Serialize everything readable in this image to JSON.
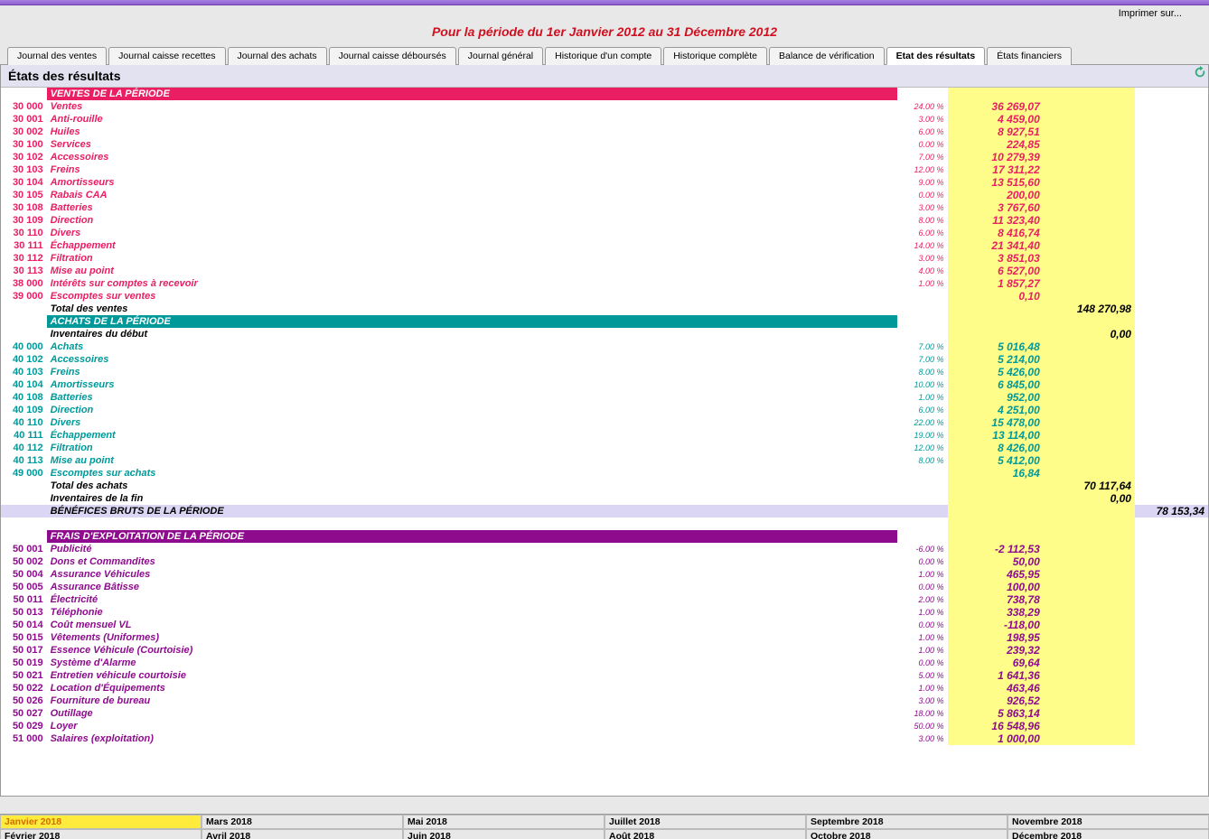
{
  "print_label": "Imprimer sur...",
  "period_title": "Pour la période du 1er Janvier 2012 au 31 Décembre 2012",
  "tabs": [
    "Journal des ventes",
    "Journal caisse recettes",
    "Journal des achats",
    "Journal caisse déboursés",
    "Journal général",
    "Historique d'un compte",
    "Historique complète",
    "Balance de vérification",
    "Etat des résultats",
    "États financiers"
  ],
  "active_tab_index": 8,
  "panel_title": "États des résultats",
  "section_ventes_title": "VENTES DE LA PÉRIODE",
  "section_achats_title": "ACHATS DE LA PÉRIODE",
  "section_frais_title": "FRAIS D'EXPLOITATION DE LA PÉRIODE",
  "inventaires_debut": "Inventaires du début",
  "inventaires_debut_val": "0,00",
  "total_ventes_label": "Total des ventes",
  "total_ventes_val": "148 270,98",
  "total_achats_label": "Total des achats",
  "total_achats_val": "70 117,64",
  "inventaires_fin_label": "Inventaires de la fin",
  "inventaires_fin_val": "0,00",
  "benefices_label": "BÉNÉFICES BRUTS DE LA PÉRIODE",
  "benefices_val": "78 153,34",
  "ventes": [
    {
      "code": "30 000",
      "label": "Ventes",
      "pct": "24.00 %",
      "amount": "36 269,07"
    },
    {
      "code": "30 001",
      "label": "Anti-rouille",
      "pct": "3.00 %",
      "amount": "4 459,00"
    },
    {
      "code": "30 002",
      "label": "Huiles",
      "pct": "6.00 %",
      "amount": "8 927,51"
    },
    {
      "code": "30 100",
      "label": "Services",
      "pct": "0.00 %",
      "amount": "224,85"
    },
    {
      "code": "30 102",
      "label": "Accessoires",
      "pct": "7.00 %",
      "amount": "10 279,39"
    },
    {
      "code": "30 103",
      "label": "Freins",
      "pct": "12.00 %",
      "amount": "17 311,22"
    },
    {
      "code": "30 104",
      "label": "Amortisseurs",
      "pct": "9.00 %",
      "amount": "13 515,60"
    },
    {
      "code": "30 105",
      "label": "Rabais CAA",
      "pct": "0.00 %",
      "amount": "200,00"
    },
    {
      "code": "30 108",
      "label": "Batteries",
      "pct": "3.00 %",
      "amount": "3 767,60"
    },
    {
      "code": "30 109",
      "label": "Direction",
      "pct": "8.00 %",
      "amount": "11 323,40"
    },
    {
      "code": "30 110",
      "label": "Divers",
      "pct": "6.00 %",
      "amount": "8 416,74"
    },
    {
      "code": "30 111",
      "label": "Échappement",
      "pct": "14.00 %",
      "amount": "21 341,40"
    },
    {
      "code": "30 112",
      "label": "Filtration",
      "pct": "3.00 %",
      "amount": "3 851,03"
    },
    {
      "code": "30 113",
      "label": "Mise au point",
      "pct": "4.00 %",
      "amount": "6 527,00"
    },
    {
      "code": "38 000",
      "label": "Intérêts sur comptes à recevoir",
      "pct": "1.00 %",
      "amount": "1 857,27"
    },
    {
      "code": "39 000",
      "label": "Escomptes sur ventes",
      "pct": "",
      "amount": "0,10"
    }
  ],
  "achats": [
    {
      "code": "40 000",
      "label": "Achats",
      "pct": "7.00 %",
      "amount": "5 016,48"
    },
    {
      "code": "40 102",
      "label": "Accessoires",
      "pct": "7.00 %",
      "amount": "5 214,00"
    },
    {
      "code": "40 103",
      "label": "Freins",
      "pct": "8.00 %",
      "amount": "5 426,00"
    },
    {
      "code": "40 104",
      "label": "Amortisseurs",
      "pct": "10.00 %",
      "amount": "6 845,00"
    },
    {
      "code": "40 108",
      "label": "Batteries",
      "pct": "1.00 %",
      "amount": "952,00"
    },
    {
      "code": "40 109",
      "label": "Direction",
      "pct": "6.00 %",
      "amount": "4 251,00"
    },
    {
      "code": "40 110",
      "label": "Divers",
      "pct": "22.00 %",
      "amount": "15 478,00"
    },
    {
      "code": "40 111",
      "label": "Échappement",
      "pct": "19.00 %",
      "amount": "13 114,00"
    },
    {
      "code": "40 112",
      "label": "Filtration",
      "pct": "12.00 %",
      "amount": "8 426,00"
    },
    {
      "code": "40 113",
      "label": "Mise au point",
      "pct": "8.00 %",
      "amount": "5 412,00"
    },
    {
      "code": "49 000",
      "label": "Escomptes sur achats",
      "pct": "",
      "amount": "16,84"
    }
  ],
  "frais": [
    {
      "code": "50 001",
      "label": "Publicité",
      "pct": "-6.00 %",
      "amount": "-2 112,53"
    },
    {
      "code": "50 002",
      "label": "Dons et Commandites",
      "pct": "0.00 %",
      "amount": "50,00"
    },
    {
      "code": "50 004",
      "label": "Assurance Véhicules",
      "pct": "1.00 %",
      "amount": "465,95"
    },
    {
      "code": "50 005",
      "label": "Assurance Bâtisse",
      "pct": "0.00 %",
      "amount": "100,00"
    },
    {
      "code": "50 011",
      "label": "Électricité",
      "pct": "2.00 %",
      "amount": "738,78"
    },
    {
      "code": "50 013",
      "label": "Téléphonie",
      "pct": "1.00 %",
      "amount": "338,29"
    },
    {
      "code": "50 014",
      "label": "Coût mensuel VL",
      "pct": "0.00 %",
      "amount": "-118,00"
    },
    {
      "code": "50 015",
      "label": "Vêtements (Uniformes)",
      "pct": "1.00 %",
      "amount": "198,95"
    },
    {
      "code": "50 017",
      "label": "Essence Véhicule (Courtoisie)",
      "pct": "1.00 %",
      "amount": "239,32"
    },
    {
      "code": "50 019",
      "label": "Système d'Alarme",
      "pct": "0.00 %",
      "amount": "69,64"
    },
    {
      "code": "50 021",
      "label": "Entretien véhicule courtoisie",
      "pct": "5.00 %",
      "amount": "1 641,36"
    },
    {
      "code": "50 022",
      "label": "Location d'Équipements",
      "pct": "1.00 %",
      "amount": "463,46"
    },
    {
      "code": "50 026",
      "label": "Fourniture de bureau",
      "pct": "3.00 %",
      "amount": "926,52"
    },
    {
      "code": "50 027",
      "label": "Outillage",
      "pct": "18.00 %",
      "amount": "5 863,14"
    },
    {
      "code": "50 029",
      "label": "Loyer",
      "pct": "50.00 %",
      "amount": "16 548,96"
    },
    {
      "code": "51 000",
      "label": "Salaires (exploitation)",
      "pct": "3.00 %",
      "amount": "1 000,00"
    }
  ],
  "months": [
    "Janvier 2018",
    "Mars 2018",
    "Mai 2018",
    "Juillet 2018",
    "Septembre 2018",
    "Novembre 2018",
    "Février 2018",
    "Avril 2018",
    "Juin 2018",
    "Août 2018",
    "Octobre 2018",
    "Décembre 2018"
  ],
  "selected_month_index": 0,
  "colors": {
    "ventes": "#e91e63",
    "achats": "#009999",
    "frais": "#8e0b8e",
    "highlight": "#fffd8a",
    "benefices_bg": "#dcd6f5"
  }
}
